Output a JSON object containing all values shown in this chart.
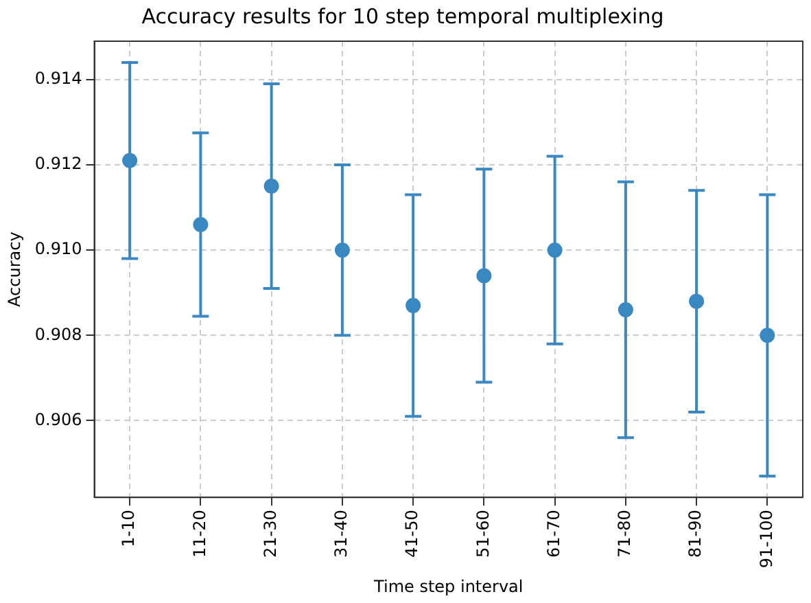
{
  "chart_data": {
    "type": "scatter",
    "title": "Accuracy results for 10 step temporal multiplexing",
    "xlabel": "Time step interval",
    "ylabel": "Accuracy",
    "categories": [
      "1-10",
      "11-20",
      "21-30",
      "31-40",
      "41-50",
      "51-60",
      "61-70",
      "71-80",
      "81-90",
      "91-100"
    ],
    "values": [
      0.9121,
      0.9106,
      0.9115,
      0.91,
      0.9087,
      0.9094,
      0.91,
      0.9086,
      0.9088,
      0.908
    ],
    "errors": [
      0.0023,
      0.00215,
      0.0024,
      0.002,
      0.0026,
      0.0025,
      0.0022,
      0.003,
      0.0026,
      0.0033
    ],
    "color": "#3a88c2",
    "marker": "circle",
    "ylim": [
      0.9042,
      0.9149
    ],
    "yticks": [
      0.906,
      0.908,
      {
        "value": 0.91,
        "label": "0.910"
      },
      0.912,
      0.914
    ],
    "grid": true,
    "legend": false
  }
}
